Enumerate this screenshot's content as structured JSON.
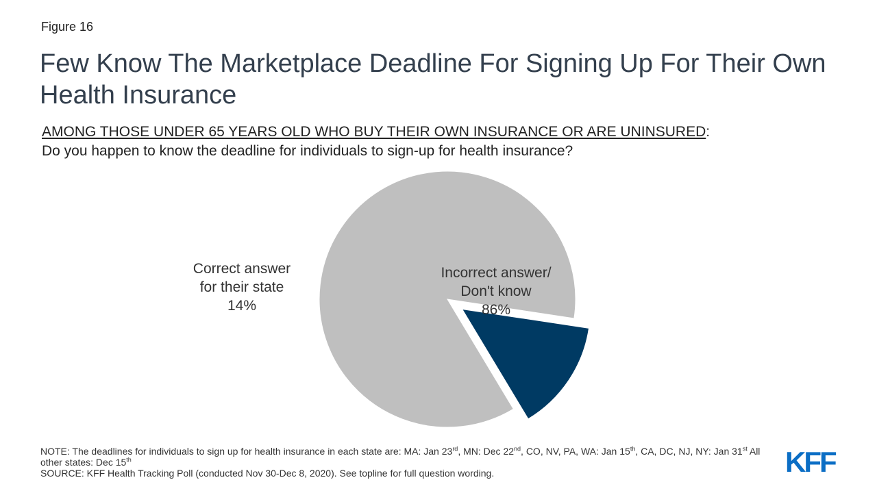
{
  "figure_label": "Figure 16",
  "title": "Few Know The Marketplace Deadline For Signing Up For Their Own Health Insurance",
  "subtitle": {
    "population": "AMONG THOSE UNDER 65 YEARS OLD WHO BUY THEIR OWN INSURANCE OR ARE UNINSURED",
    "colon": ":",
    "question": "Do you happen to know the deadline for individuals to sign-up for health insurance?"
  },
  "chart_data": {
    "type": "pie",
    "slices": [
      {
        "label_lines": [
          "Incorrect answer/",
          "Don't know"
        ],
        "value_label": "86%",
        "value": 86,
        "color": "#bfbfbf",
        "exploded": false
      },
      {
        "label_lines": [
          "Correct answer",
          "for their state"
        ],
        "value_label": "14%",
        "value": 14,
        "color": "#003a63",
        "exploded": true
      }
    ]
  },
  "note": {
    "prefix": "NOTE: The deadlines for individuals to sign up for health insurance in each state are: MA: Jan 23",
    "ma_sup": "rd",
    "mn_text": ", MN: Dec 22",
    "mn_sup": "nd",
    "co_text": ", CO, NV, PA, WA: Jan 15",
    "co_sup": "th",
    "ca_text": ", CA, DC, NJ, NY:  Jan 31",
    "ca_sup": "st",
    "other_text": " All other states: Dec 15",
    "other_sup": "th",
    "source": "SOURCE: KFF Health Tracking Poll (conducted Nov 30-Dec 8, 2020). See topline for full question wording."
  },
  "logo": {
    "text": "KFF",
    "color": "#0b6ec5"
  }
}
